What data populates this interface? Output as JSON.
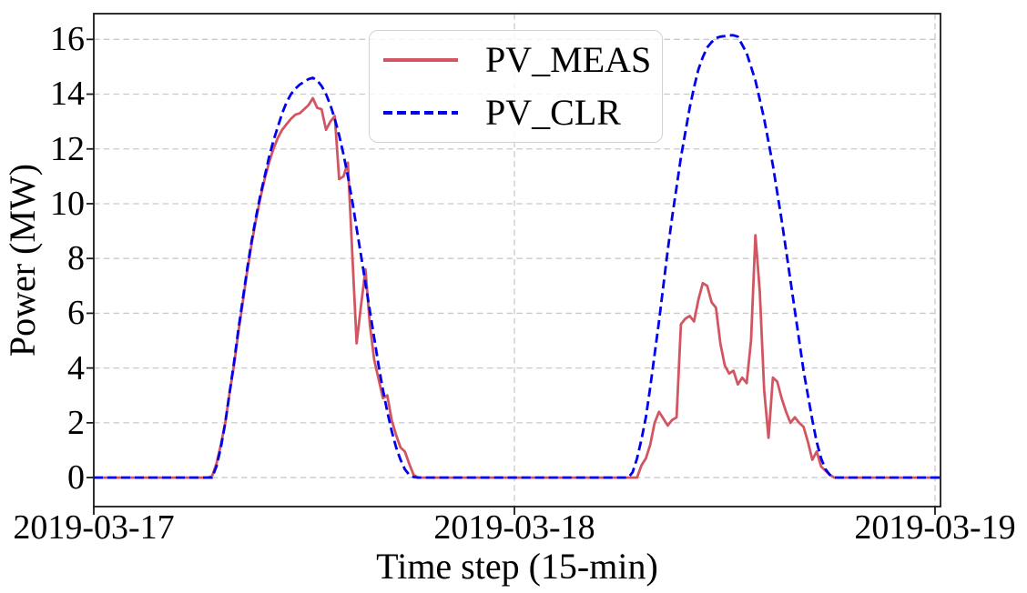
{
  "chart_data": {
    "type": "line",
    "title": "",
    "xlabel": "Time step (15-min)",
    "ylabel": "Power (MW)",
    "x_axis": {
      "unit": "15-minute steps from 2019-03-17 00:00",
      "range_steps": [
        0,
        193.25
      ],
      "tick_steps": [
        0,
        96,
        192
      ],
      "tick_labels": [
        "2019-03-17",
        "2019-03-18",
        "2019-03-19"
      ]
    },
    "y_axis": {
      "range": [
        -1.06,
        16.94
      ],
      "ticks": [
        0,
        2,
        4,
        6,
        8,
        10,
        12,
        14,
        16
      ]
    },
    "grid": {
      "visible": true,
      "style": "dashed",
      "color": "#c9c9c9"
    },
    "legend": {
      "position": "upper-center-left",
      "labels": [
        "PV_MEAS",
        "PV_CLR"
      ]
    },
    "series": [
      {
        "name": "PV_MEAS",
        "color": "#d25662",
        "line_style": "solid",
        "points": [
          [
            0,
            0
          ],
          [
            26,
            0
          ],
          [
            27,
            0.05
          ],
          [
            28,
            0.5
          ],
          [
            29,
            1.2
          ],
          [
            30,
            2.0
          ],
          [
            31,
            3.1
          ],
          [
            32,
            4.1
          ],
          [
            33,
            5.3
          ],
          [
            34,
            6.4
          ],
          [
            35,
            7.5
          ],
          [
            36,
            8.5
          ],
          [
            37,
            9.4
          ],
          [
            38,
            10.2
          ],
          [
            39,
            10.9
          ],
          [
            40,
            11.5
          ],
          [
            41,
            12.0
          ],
          [
            42,
            12.4
          ],
          [
            43,
            12.7
          ],
          [
            44,
            12.9
          ],
          [
            45,
            13.1
          ],
          [
            46,
            13.25
          ],
          [
            47,
            13.3
          ],
          [
            48,
            13.45
          ],
          [
            49,
            13.6
          ],
          [
            50,
            13.85
          ],
          [
            51,
            13.5
          ],
          [
            52,
            13.45
          ],
          [
            53,
            12.7
          ],
          [
            54,
            13.0
          ],
          [
            55,
            13.2
          ],
          [
            56,
            10.9
          ],
          [
            57,
            11.0
          ],
          [
            58,
            11.5
          ],
          [
            59,
            8.2
          ],
          [
            60,
            4.9
          ],
          [
            61,
            6.3
          ],
          [
            62,
            7.6
          ],
          [
            63,
            5.6
          ],
          [
            64,
            4.3
          ],
          [
            65,
            3.6
          ],
          [
            66,
            2.9
          ],
          [
            67,
            3.0
          ],
          [
            68,
            2.1
          ],
          [
            69,
            1.55
          ],
          [
            70,
            1.1
          ],
          [
            71,
            0.95
          ],
          [
            72,
            0.5
          ],
          [
            73,
            0.1
          ],
          [
            74,
            0
          ],
          [
            124,
            0
          ],
          [
            125,
            0.45
          ],
          [
            126,
            0.7
          ],
          [
            127,
            1.2
          ],
          [
            128,
            2.0
          ],
          [
            129,
            2.4
          ],
          [
            130,
            2.15
          ],
          [
            131,
            1.9
          ],
          [
            132,
            2.1
          ],
          [
            133,
            2.2
          ],
          [
            134,
            5.6
          ],
          [
            135,
            5.8
          ],
          [
            136,
            5.9
          ],
          [
            137,
            5.7
          ],
          [
            138,
            6.5
          ],
          [
            139,
            7.1
          ],
          [
            140,
            7.0
          ],
          [
            141,
            6.4
          ],
          [
            142,
            6.2
          ],
          [
            143,
            4.9
          ],
          [
            144,
            4.1
          ],
          [
            145,
            3.8
          ],
          [
            146,
            3.9
          ],
          [
            147,
            3.4
          ],
          [
            148,
            3.65
          ],
          [
            149,
            3.45
          ],
          [
            150,
            5.0
          ],
          [
            151,
            8.85
          ],
          [
            152,
            6.8
          ],
          [
            153,
            3.2
          ],
          [
            154,
            1.45
          ],
          [
            155,
            3.65
          ],
          [
            156,
            3.5
          ],
          [
            157,
            2.9
          ],
          [
            158,
            2.4
          ],
          [
            159,
            2.0
          ],
          [
            160,
            2.2
          ],
          [
            161,
            2.0
          ],
          [
            162,
            1.85
          ],
          [
            163,
            1.3
          ],
          [
            164,
            0.65
          ],
          [
            165,
            0.95
          ],
          [
            166,
            0.4
          ],
          [
            167,
            0.25
          ],
          [
            168,
            0.1
          ],
          [
            169,
            0
          ],
          [
            193.25,
            0
          ]
        ]
      },
      {
        "name": "PV_CLR",
        "color": "#0000ee",
        "line_style": "dashed",
        "points": [
          [
            0,
            0
          ],
          [
            27,
            0
          ],
          [
            28,
            0.4
          ],
          [
            29,
            1.1
          ],
          [
            30,
            2.0
          ],
          [
            31,
            3.1
          ],
          [
            32,
            4.2
          ],
          [
            33,
            5.4
          ],
          [
            34,
            6.5
          ],
          [
            35,
            7.6
          ],
          [
            36,
            8.6
          ],
          [
            37,
            9.5
          ],
          [
            38,
            10.3
          ],
          [
            39,
            11.0
          ],
          [
            40,
            11.7
          ],
          [
            41,
            12.3
          ],
          [
            42,
            12.8
          ],
          [
            43,
            13.3
          ],
          [
            44,
            13.7
          ],
          [
            45,
            14.0
          ],
          [
            46,
            14.2
          ],
          [
            47,
            14.35
          ],
          [
            48,
            14.45
          ],
          [
            49,
            14.55
          ],
          [
            50,
            14.6
          ],
          [
            51,
            14.5
          ],
          [
            52,
            14.3
          ],
          [
            53,
            14.0
          ],
          [
            54,
            13.6
          ],
          [
            55,
            13.1
          ],
          [
            56,
            12.5
          ],
          [
            57,
            11.8
          ],
          [
            58,
            11.0
          ],
          [
            59,
            10.1
          ],
          [
            60,
            9.1
          ],
          [
            61,
            8.1
          ],
          [
            62,
            7.1
          ],
          [
            63,
            6.1
          ],
          [
            64,
            5.1
          ],
          [
            65,
            4.1
          ],
          [
            66,
            3.2
          ],
          [
            67,
            2.4
          ],
          [
            68,
            1.7
          ],
          [
            69,
            1.1
          ],
          [
            70,
            0.65
          ],
          [
            71,
            0.3
          ],
          [
            72,
            0.1
          ],
          [
            73,
            0.02
          ],
          [
            74,
            0
          ],
          [
            122,
            0
          ],
          [
            123,
            0.2
          ],
          [
            124,
            0.7
          ],
          [
            125,
            1.4
          ],
          [
            126,
            2.2
          ],
          [
            127,
            3.3
          ],
          [
            128,
            4.5
          ],
          [
            129,
            5.7
          ],
          [
            130,
            7.0
          ],
          [
            131,
            8.3
          ],
          [
            132,
            9.5
          ],
          [
            133,
            10.6
          ],
          [
            134,
            11.7
          ],
          [
            135,
            12.6
          ],
          [
            136,
            13.5
          ],
          [
            137,
            14.25
          ],
          [
            138,
            14.9
          ],
          [
            139,
            15.35
          ],
          [
            140,
            15.7
          ],
          [
            141,
            15.9
          ],
          [
            142,
            16.05
          ],
          [
            143,
            16.1
          ],
          [
            144,
            16.12
          ],
          [
            145,
            16.15
          ],
          [
            146,
            16.15
          ],
          [
            147,
            16.1
          ],
          [
            148,
            15.8
          ],
          [
            149,
            15.5
          ],
          [
            150,
            15.0
          ],
          [
            151,
            14.5
          ],
          [
            152,
            13.8
          ],
          [
            153,
            13.1
          ],
          [
            154,
            12.25
          ],
          [
            155,
            11.4
          ],
          [
            156,
            10.4
          ],
          [
            157,
            9.4
          ],
          [
            158,
            8.3
          ],
          [
            159,
            7.2
          ],
          [
            160,
            6.1
          ],
          [
            161,
            5.0
          ],
          [
            162,
            3.9
          ],
          [
            163,
            3.0
          ],
          [
            164,
            2.1
          ],
          [
            165,
            1.3
          ],
          [
            166,
            0.7
          ],
          [
            167,
            0.3
          ],
          [
            168,
            0.1
          ],
          [
            169,
            0
          ],
          [
            193.25,
            0
          ]
        ]
      }
    ]
  }
}
